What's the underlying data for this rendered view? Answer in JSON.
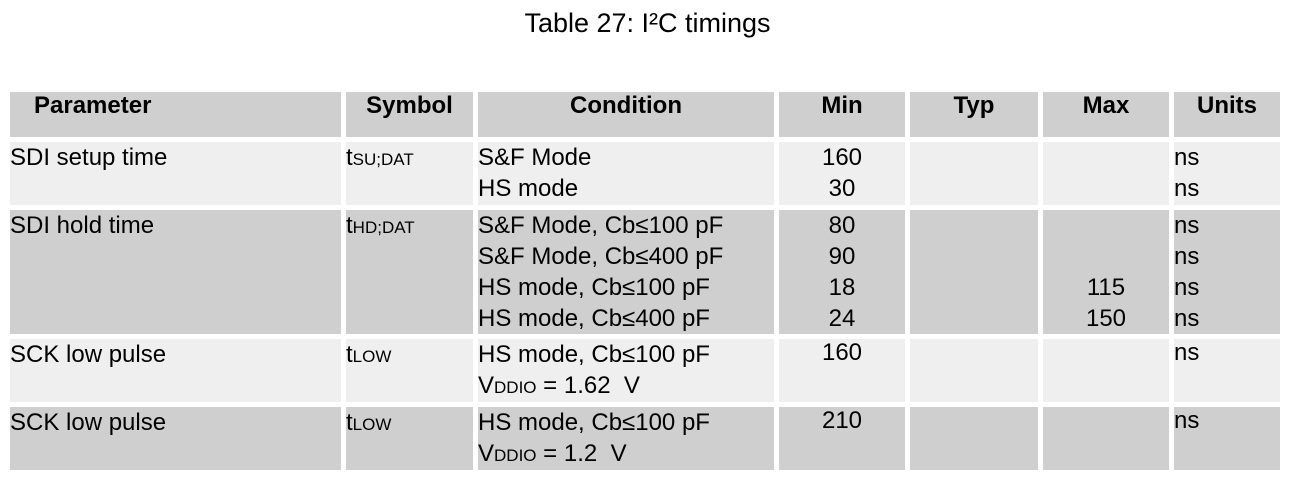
{
  "caption": "Table 27: I²C timings",
  "headers": {
    "parameter": "Parameter",
    "symbol": "Symbol",
    "condition": "Condition",
    "min": "Min",
    "typ": "Typ",
    "max": "Max",
    "units": "Units"
  },
  "rows": [
    {
      "parameter": "SDI setup time",
      "symbol_main": "t",
      "symbol_sub": "SU;DAT",
      "conditions": [
        "S&F Mode",
        "HS mode"
      ],
      "min": [
        "160",
        "30"
      ],
      "max": [
        "",
        ""
      ],
      "units": [
        "ns",
        "ns"
      ]
    },
    {
      "parameter": "SDI hold time",
      "symbol_main": "t",
      "symbol_sub": "HD;DAT",
      "conditions": [
        "S&F Mode, Cb≤100 pF",
        "S&F Mode, Cb≤400 pF",
        "HS mode, Cb≤100 pF",
        "HS mode, Cb≤400 pF"
      ],
      "min": [
        "80",
        "90",
        "18",
        "24"
      ],
      "max": [
        "",
        "",
        "115",
        "150"
      ],
      "units": [
        "ns",
        "ns",
        "ns",
        "ns"
      ]
    },
    {
      "parameter": "SCK low pulse",
      "symbol_main": "t",
      "symbol_sub": "LOW",
      "condition_line1": "HS mode, Cb≤100 pF",
      "condition_v_main": "V",
      "condition_v_sub": "DDIO",
      "condition_v_value": " = 1.62  V",
      "min": "160",
      "units": "ns"
    },
    {
      "parameter": "SCK low pulse",
      "symbol_main": "t",
      "symbol_sub": "LOW",
      "condition_line1": "HS mode, Cb≤100 pF",
      "condition_v_main": "V",
      "condition_v_sub": "DDIO",
      "condition_v_value": " = 1.2  V",
      "min": "210",
      "units": "ns"
    }
  ]
}
